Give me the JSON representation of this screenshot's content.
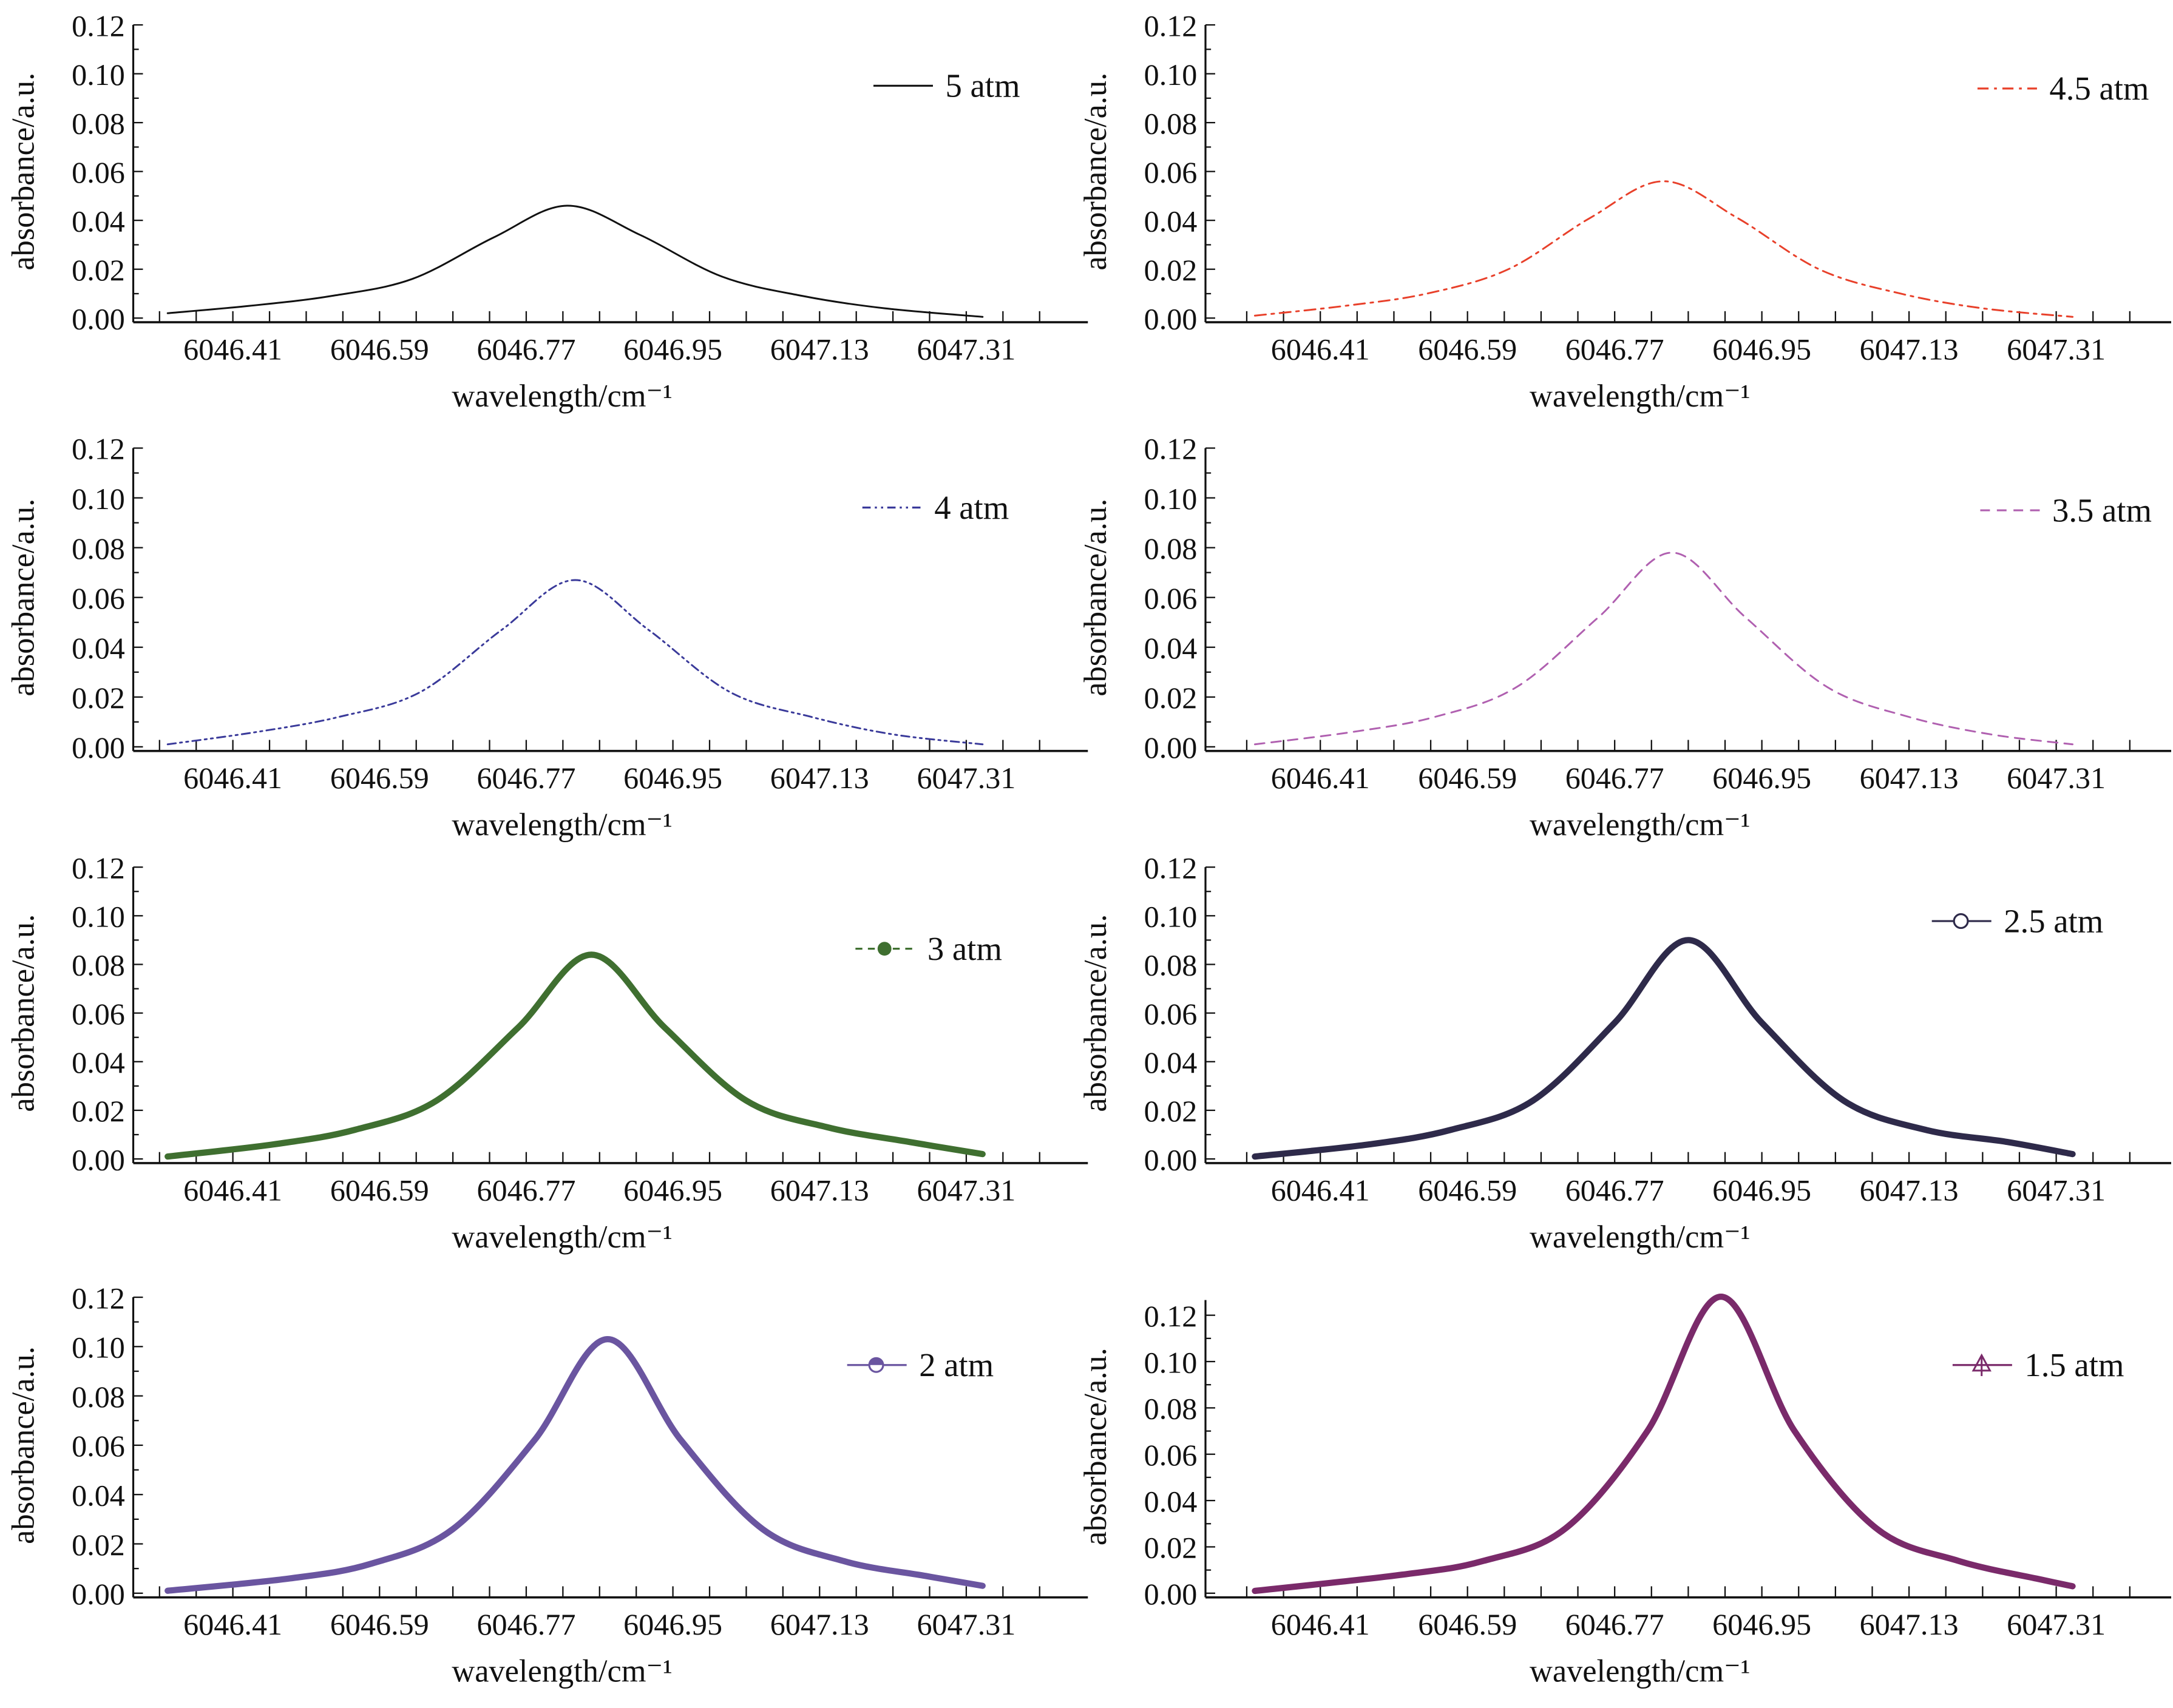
{
  "chart_data": [
    {
      "type": "line",
      "xlabel": "wavelength/cm⁻¹",
      "ylabel": "absorbance/a.u.",
      "xticks": [
        "6046.41",
        "6046.59",
        "6046.77",
        "6046.95",
        "6047.13",
        "6047.31"
      ],
      "yticks": [
        "0.00",
        "0.02",
        "0.04",
        "0.06",
        "0.08",
        "0.10",
        "0.12"
      ],
      "ylim": [
        0,
        0.12
      ],
      "series": [
        {
          "name": "5 atm",
          "color": "#111111",
          "style": "solid",
          "marker": "none",
          "points": [
            [
              6046.33,
              0.002
            ],
            [
              6046.43,
              0.005
            ],
            [
              6046.53,
              0.009
            ],
            [
              6046.63,
              0.016
            ],
            [
              6046.73,
              0.033
            ],
            [
              6046.82,
              0.046
            ],
            [
              6046.91,
              0.034
            ],
            [
              6047.01,
              0.017
            ],
            [
              6047.11,
              0.009
            ],
            [
              6047.21,
              0.004
            ],
            [
              6047.33,
              0.0005
            ]
          ]
        }
      ]
    },
    {
      "type": "line",
      "xlabel": "wavelength/cm⁻¹",
      "ylabel": "absorbance/a.u.",
      "xticks": [
        "6046.41",
        "6046.59",
        "6046.77",
        "6046.95",
        "6047.13",
        "6047.31"
      ],
      "yticks": [
        "0.00",
        "0.02",
        "0.04",
        "0.06",
        "0.08",
        "0.10",
        "0.12"
      ],
      "ylim": [
        0,
        0.12
      ],
      "series": [
        {
          "name": "4.5 atm",
          "color": "#e8402a",
          "style": "dash-dot",
          "marker": "none",
          "points": [
            [
              6046.33,
              0.001
            ],
            [
              6046.44,
              0.005
            ],
            [
              6046.54,
              0.01
            ],
            [
              6046.64,
              0.02
            ],
            [
              6046.74,
              0.041
            ],
            [
              6046.83,
              0.056
            ],
            [
              6046.92,
              0.041
            ],
            [
              6047.02,
              0.02
            ],
            [
              6047.12,
              0.01
            ],
            [
              6047.22,
              0.004
            ],
            [
              6047.33,
              0.0005
            ]
          ]
        }
      ]
    },
    {
      "type": "line",
      "xlabel": "wavelength/cm⁻¹",
      "ylabel": "absorbance/a.u.",
      "xticks": [
        "6046.41",
        "6046.59",
        "6046.77",
        "6046.95",
        "6047.13",
        "6047.31"
      ],
      "yticks": [
        "0.00",
        "0.02",
        "0.04",
        "0.06",
        "0.08",
        "0.10",
        "0.12"
      ],
      "ylim": [
        0,
        0.12
      ],
      "series": [
        {
          "name": "4 atm",
          "color": "#3a3a9a",
          "style": "dash-dot-dot",
          "marker": "none",
          "points": [
            [
              6046.33,
              0.001
            ],
            [
              6046.44,
              0.006
            ],
            [
              6046.54,
              0.012
            ],
            [
              6046.64,
              0.022
            ],
            [
              6046.74,
              0.047
            ],
            [
              6046.83,
              0.067
            ],
            [
              6046.92,
              0.047
            ],
            [
              6047.02,
              0.022
            ],
            [
              6047.12,
              0.012
            ],
            [
              6047.22,
              0.005
            ],
            [
              6047.33,
              0.001
            ]
          ]
        }
      ]
    },
    {
      "type": "line",
      "xlabel": "wavelength/cm⁻¹",
      "ylabel": "absorbance/a.u.",
      "xticks": [
        "6046.41",
        "6046.59",
        "6046.77",
        "6046.95",
        "6047.13",
        "6047.31"
      ],
      "yticks": [
        "0.00",
        "0.02",
        "0.04",
        "0.06",
        "0.08",
        "0.10",
        "0.12"
      ],
      "ylim": [
        0,
        0.12
      ],
      "series": [
        {
          "name": "3.5 atm",
          "color": "#b060b0",
          "style": "dashed",
          "marker": "none",
          "points": [
            [
              6046.33,
              0.001
            ],
            [
              6046.45,
              0.006
            ],
            [
              6046.55,
              0.012
            ],
            [
              6046.65,
              0.024
            ],
            [
              6046.75,
              0.052
            ],
            [
              6046.84,
              0.078
            ],
            [
              6046.93,
              0.052
            ],
            [
              6047.03,
              0.024
            ],
            [
              6047.13,
              0.012
            ],
            [
              6047.23,
              0.005
            ],
            [
              6047.33,
              0.001
            ]
          ]
        }
      ]
    },
    {
      "type": "line",
      "xlabel": "wavelength/cm⁻¹",
      "ylabel": "absorbance/a.u.",
      "xticks": [
        "6046.41",
        "6046.59",
        "6046.77",
        "6046.95",
        "6047.13",
        "6047.31"
      ],
      "yticks": [
        "0.00",
        "0.02",
        "0.04",
        "0.06",
        "0.08",
        "0.10",
        "0.12"
      ],
      "ylim": [
        0,
        0.12
      ],
      "series": [
        {
          "name": "3 atm",
          "color": "#3f6f30",
          "style": "thick",
          "marker": "filled-circle",
          "points": [
            [
              6046.33,
              0.001
            ],
            [
              6046.46,
              0.006
            ],
            [
              6046.56,
              0.012
            ],
            [
              6046.66,
              0.024
            ],
            [
              6046.76,
              0.054
            ],
            [
              6046.85,
              0.084
            ],
            [
              6046.94,
              0.054
            ],
            [
              6047.04,
              0.024
            ],
            [
              6047.14,
              0.013
            ],
            [
              6047.24,
              0.007
            ],
            [
              6047.33,
              0.002
            ]
          ]
        }
      ]
    },
    {
      "type": "line",
      "xlabel": "wavelength/cm⁻¹",
      "ylabel": "absorbance/a.u.",
      "xticks": [
        "6046.41",
        "6046.59",
        "6046.77",
        "6046.95",
        "6047.13",
        "6047.31"
      ],
      "yticks": [
        "0.00",
        "0.02",
        "0.04",
        "0.06",
        "0.08",
        "0.10",
        "0.12"
      ],
      "ylim": [
        0,
        0.12
      ],
      "series": [
        {
          "name": "2.5 atm",
          "color": "#2e2a4a",
          "style": "thick",
          "marker": "open-circle",
          "points": [
            [
              6046.33,
              0.001
            ],
            [
              6046.47,
              0.006
            ],
            [
              6046.57,
              0.012
            ],
            [
              6046.67,
              0.024
            ],
            [
              6046.77,
              0.056
            ],
            [
              6046.86,
              0.09
            ],
            [
              6046.95,
              0.056
            ],
            [
              6047.05,
              0.024
            ],
            [
              6047.15,
              0.012
            ],
            [
              6047.25,
              0.007
            ],
            [
              6047.33,
              0.002
            ]
          ]
        }
      ]
    },
    {
      "type": "line",
      "xlabel": "wavelength/cm⁻¹",
      "ylabel": "absorbance/a.u.",
      "xticks": [
        "6046.41",
        "6046.59",
        "6046.77",
        "6046.95",
        "6047.13",
        "6047.31"
      ],
      "yticks": [
        "0.00",
        "0.02",
        "0.04",
        "0.06",
        "0.08",
        "0.10",
        "0.12"
      ],
      "ylim": [
        0,
        0.12
      ],
      "series": [
        {
          "name": "2 atm",
          "color": "#6a55a0",
          "style": "thick",
          "marker": "half-circle",
          "points": [
            [
              6046.33,
              0.001
            ],
            [
              6046.48,
              0.006
            ],
            [
              6046.58,
              0.012
            ],
            [
              6046.68,
              0.026
            ],
            [
              6046.78,
              0.062
            ],
            [
              6046.87,
              0.103
            ],
            [
              6046.96,
              0.062
            ],
            [
              6047.06,
              0.026
            ],
            [
              6047.16,
              0.013
            ],
            [
              6047.26,
              0.007
            ],
            [
              6047.33,
              0.003
            ]
          ]
        }
      ]
    },
    {
      "type": "line",
      "xlabel": "wavelength/cm⁻¹",
      "ylabel": "absorbance/a.u.",
      "xticks": [
        "6046.41",
        "6046.59",
        "6046.77",
        "6046.95",
        "6047.13",
        "6047.31"
      ],
      "yticks": [
        "0.00",
        "0.02",
        "0.04",
        "0.06",
        "0.08",
        "0.10",
        "0.12"
      ],
      "ylim": [
        0,
        0.13
      ],
      "series": [
        {
          "name": "1.5 atm",
          "color": "#7a2a6a",
          "style": "thick",
          "marker": "triangle",
          "points": [
            [
              6046.33,
              0.001
            ],
            [
              6046.51,
              0.008
            ],
            [
              6046.61,
              0.014
            ],
            [
              6046.71,
              0.028
            ],
            [
              6046.81,
              0.07
            ],
            [
              6046.9,
              0.128
            ],
            [
              6046.99,
              0.07
            ],
            [
              6047.09,
              0.028
            ],
            [
              6047.19,
              0.014
            ],
            [
              6047.29,
              0.006
            ],
            [
              6047.33,
              0.003
            ]
          ]
        }
      ]
    }
  ]
}
